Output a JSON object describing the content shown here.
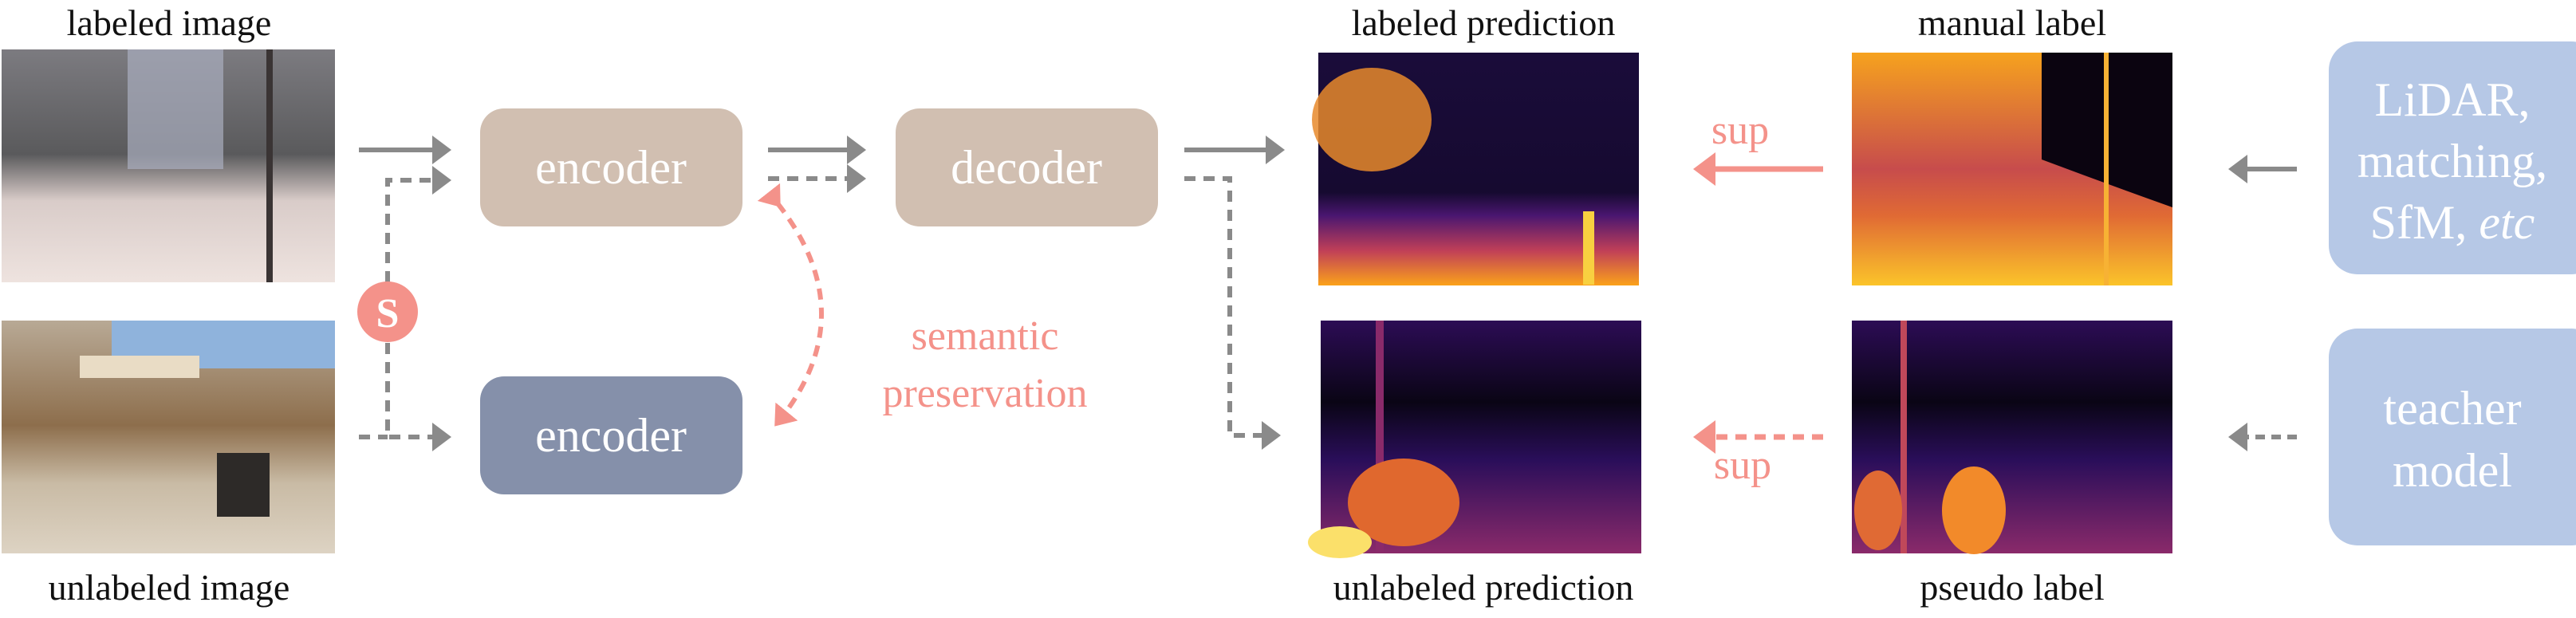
{
  "captions": {
    "labeled_image": "labeled image",
    "unlabeled_image": "unlabeled image",
    "labeled_prediction": "labeled prediction",
    "unlabeled_prediction": "unlabeled prediction",
    "manual_label": "manual label",
    "pseudo_label": "pseudo label"
  },
  "blocks": {
    "encoder_top": "encoder",
    "decoder": "decoder",
    "encoder_bottom": "encoder",
    "strong_aug": "S",
    "sources_line1": "LiDAR,",
    "sources_line2": "matching,",
    "sources_line3_a": "SfM, ",
    "sources_line3_b": "etc",
    "teacher_line1": "teacher",
    "teacher_line2": "model"
  },
  "annotations": {
    "semantic_line1": "semantic",
    "semantic_line2": "preservation",
    "sup_top": "sup",
    "sup_bottom": "sup"
  },
  "colors": {
    "encoder_decoder": "#d1bfb1",
    "frozen_encoder": "#8590aa",
    "source_box": "#b6c8e6",
    "accent_pink": "#f4928a",
    "arrow_gray": "#8a8a8a"
  }
}
